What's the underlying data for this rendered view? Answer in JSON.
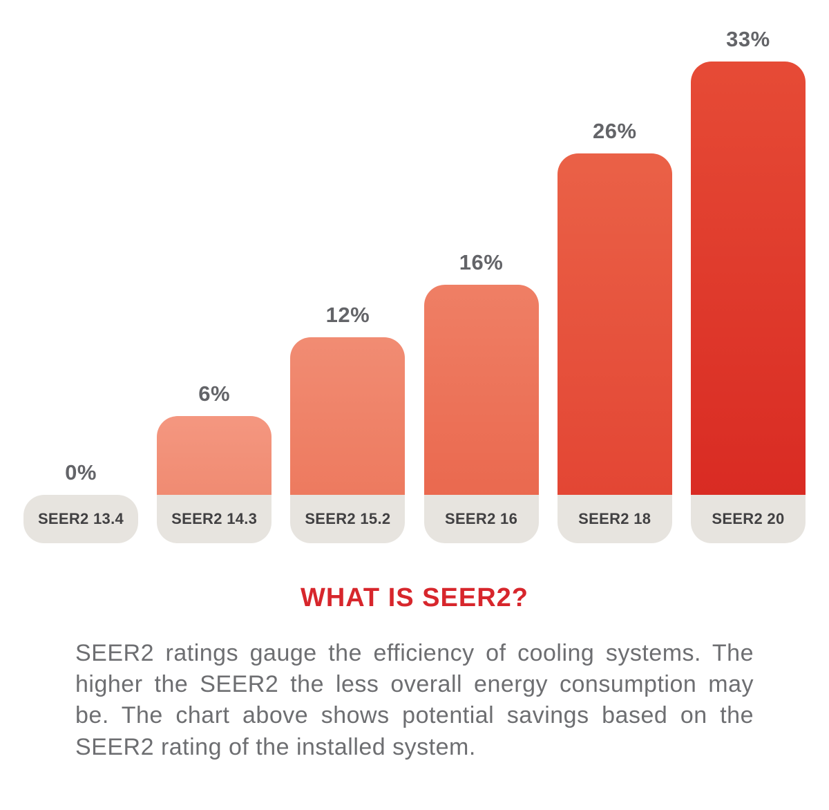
{
  "chart_data": {
    "type": "bar",
    "title": "",
    "xlabel": "",
    "ylabel": "",
    "categories": [
      "SEER2 13.4",
      "SEER2 14.3",
      "SEER2 15.2",
      "SEER2 16",
      "SEER2 18",
      "SEER2 20"
    ],
    "values": [
      0,
      6,
      12,
      16,
      26,
      33
    ],
    "value_labels": [
      "0%",
      "6%",
      "12%",
      "16%",
      "26%",
      "33%"
    ],
    "ylim": [
      0,
      36
    ],
    "grid": false,
    "legend": "none",
    "bar_gradients": [
      [
        "#E7E4DF",
        "#E7E4DF"
      ],
      [
        "#F49780",
        "#F08B72"
      ],
      [
        "#F18C73",
        "#ED7A5F"
      ],
      [
        "#EF7F65",
        "#EA694F"
      ],
      [
        "#EA6147",
        "#E34634"
      ],
      [
        "#E64B36",
        "#D92B23"
      ]
    ]
  },
  "info": {
    "title": "WHAT IS SEER2?",
    "body": "SEER2 ratings gauge the efficiency of cooling systems. The higher the SEER2 the less overall energy consumption may be. The chart above shows potential savings based on the SEER2 rating of the installed system."
  },
  "colors": {
    "title_red": "#D7262C",
    "body_text": "#6D6E71",
    "value_label_text": "#636468",
    "pill_bg": "#E7E4DF",
    "pill_text": "#414042"
  }
}
